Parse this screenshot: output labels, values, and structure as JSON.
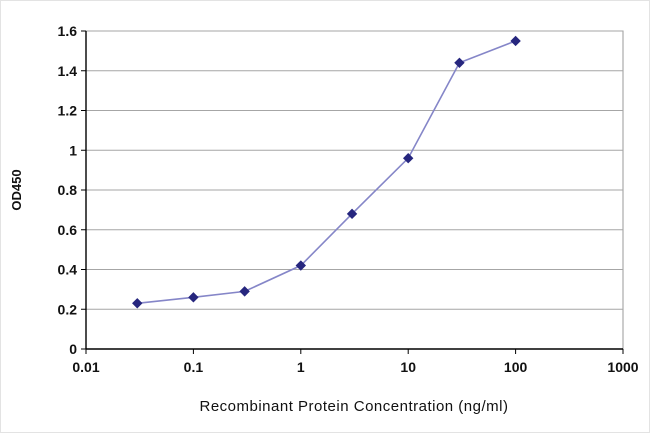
{
  "chart_data": {
    "type": "line",
    "title": "",
    "xlabel": "Recombinant Protein Concentration (ng/ml)",
    "ylabel": "OD450",
    "x_scale": "log",
    "xlim": [
      0.01,
      1000
    ],
    "ylim": [
      0,
      1.6
    ],
    "x": [
      0.03,
      0.1,
      0.3,
      1,
      3,
      10,
      30,
      100
    ],
    "values": [
      0.23,
      0.26,
      0.29,
      0.42,
      0.68,
      0.96,
      1.44,
      1.55
    ],
    "x_tick_labels": [
      "0.01",
      "0.1",
      "1",
      "10",
      "100",
      "1000"
    ],
    "y_tick_labels": [
      "0",
      "0.2",
      "0.4",
      "0.6",
      "0.8",
      "1",
      "1.2",
      "1.4",
      "1.6"
    ],
    "y_tick_step": 0.2,
    "grid": "horizontal",
    "legend": "none",
    "colors": {
      "line": "#8586c8",
      "marker": "#26267e",
      "grid": "#a6a6a6",
      "axis": "#000000",
      "plot_border": "#9a9a9a"
    }
  }
}
